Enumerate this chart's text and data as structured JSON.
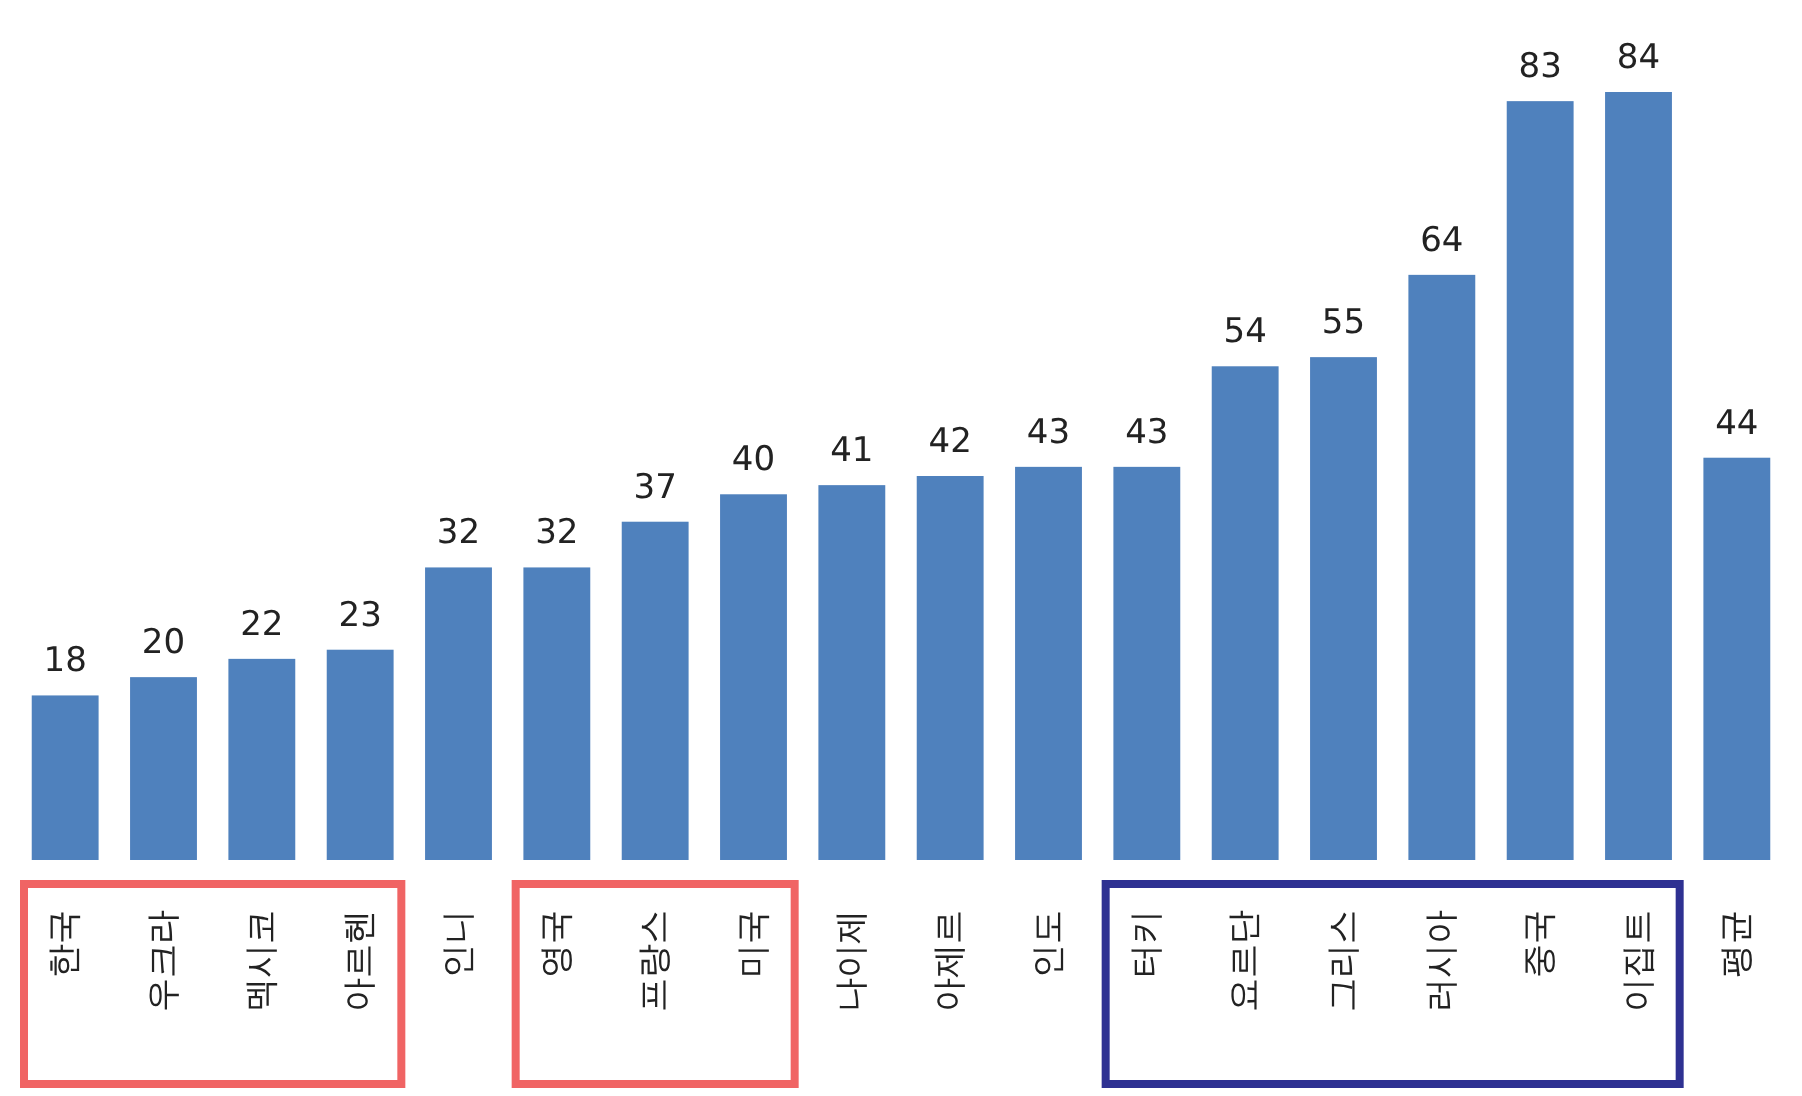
{
  "chart_data": {
    "type": "bar",
    "categories": [
      "한국",
      "우크라",
      "멕시코",
      "아르헨",
      "인니",
      "영국",
      "프랑스",
      "미국",
      "나이제",
      "아제르",
      "인도",
      "터키",
      "요르단",
      "그리스",
      "러시아",
      "중국",
      "이집트",
      "평균"
    ],
    "values": [
      18,
      20,
      22,
      23,
      32,
      32,
      37,
      40,
      41,
      42,
      43,
      43,
      54,
      55,
      64,
      83,
      84,
      44
    ],
    "color": "#4f81bd",
    "data_labels": true,
    "relative": false
  }
}
